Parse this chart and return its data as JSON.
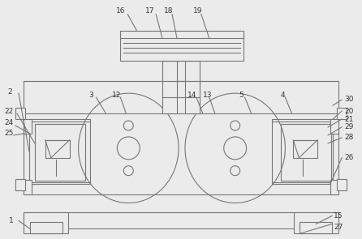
{
  "bg_color": "#ebebeb",
  "line_color": "#777777",
  "fig_width": 4.46,
  "fig_height": 2.95,
  "dpi": 100
}
